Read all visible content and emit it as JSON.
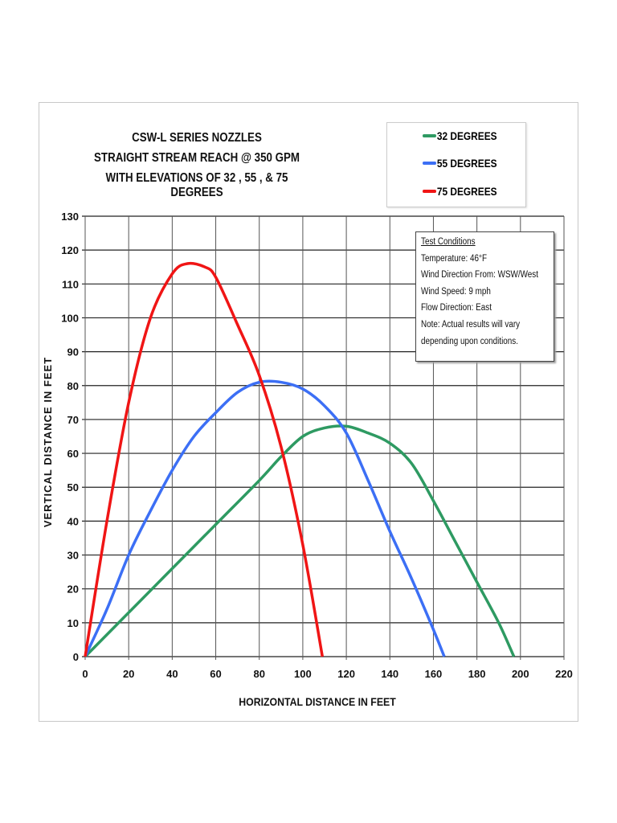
{
  "chart_data": {
    "type": "line",
    "title": [
      "CSW-L SERIES NOZZLES",
      "STRAIGHT STREAM REACH @ 350 GPM",
      "WITH ELEVATIONS OF 32 , 55 , & 75 DEGREES"
    ],
    "xlabel": "HORIZONTAL DISTANCE IN FEET",
    "ylabel": "VERTICAL DISTANCE IN FEET",
    "xlim": [
      0,
      220
    ],
    "ylim": [
      0,
      130
    ],
    "xticks": [
      0,
      20,
      40,
      60,
      80,
      100,
      120,
      140,
      160,
      180,
      200,
      220
    ],
    "yticks": [
      0,
      10,
      20,
      30,
      40,
      50,
      60,
      70,
      80,
      90,
      100,
      110,
      120,
      130
    ],
    "grid": true,
    "legend_position": "top-right",
    "series": [
      {
        "name": "32 DEGREES",
        "color": "#2e9a62",
        "x": [
          0,
          20,
          40,
          60,
          80,
          90,
          100,
          110,
          120,
          130,
          140,
          150,
          160,
          170,
          180,
          190,
          197
        ],
        "y": [
          0,
          13,
          26,
          39,
          52,
          59,
          65,
          67.5,
          68,
          66,
          63,
          57,
          46,
          34,
          22,
          10,
          0
        ]
      },
      {
        "name": "55 DEGREES",
        "color": "#3c6ff5",
        "x": [
          0,
          10,
          20,
          30,
          40,
          50,
          60,
          70,
          80,
          90,
          100,
          110,
          120,
          130,
          140,
          150,
          160,
          165
        ],
        "y": [
          0,
          14,
          30,
          43,
          55,
          65,
          72,
          78,
          81,
          81,
          79,
          74,
          66,
          52,
          37,
          23,
          8,
          0
        ]
      },
      {
        "name": "75 DEGREES",
        "color": "#f01515",
        "x": [
          0,
          10,
          20,
          30,
          40,
          47,
          55,
          60,
          70,
          80,
          90,
          100,
          109
        ],
        "y": [
          0,
          40,
          75,
          100,
          113,
          116,
          115,
          112,
          98,
          83,
          62,
          33,
          0
        ]
      }
    ]
  },
  "test_conditions": {
    "heading": "Test Conditions",
    "lines": [
      "Temperature:  46°F",
      "Wind Direction From:  WSW/West",
      "Wind Speed:  9 mph",
      "Flow Direction:  East",
      "Note:  Actual results will vary",
      "depending upon conditions."
    ]
  }
}
